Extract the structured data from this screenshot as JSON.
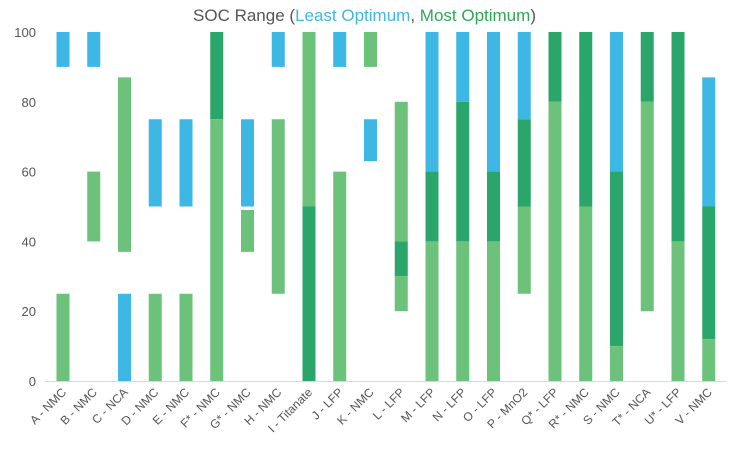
{
  "chart_data": {
    "type": "bar",
    "subtype": "floating-range",
    "title": {
      "main": "SOC Range (",
      "least": "Least Optimum",
      "sep": ",  ",
      "most": "Most Optimum",
      "close": ")"
    },
    "ylim": [
      0,
      100
    ],
    "yticks": [
      0,
      20,
      40,
      60,
      80,
      100
    ],
    "colors": {
      "least": "#3db7e4",
      "mid": "#6cc17b",
      "most": "#2aa66a"
    },
    "categories": [
      "A - NMC",
      "B - NMC",
      "C - NCA",
      "D - NMC",
      "E - NMC",
      "F* - NMC",
      "G* - NMC",
      "H - NMC",
      "I - Titanate",
      "J - LFP",
      "K - NMC",
      "L - LFP",
      "M - LFP",
      "N - LFP",
      "O - LFP",
      "P - MnO2",
      "Q* - LFP",
      "R* - NMC",
      "S - NMC",
      "T* - NCA",
      "U* - LFP",
      "V - NMC"
    ],
    "segments": [
      [
        [
          "least",
          90,
          100
        ],
        [
          "mid",
          0,
          25
        ]
      ],
      [
        [
          "least",
          90,
          100
        ],
        [
          "mid",
          40,
          60
        ]
      ],
      [
        [
          "mid",
          37,
          87
        ],
        [
          "least",
          0,
          25
        ]
      ],
      [
        [
          "least",
          50,
          75
        ],
        [
          "mid",
          0,
          25
        ]
      ],
      [
        [
          "least",
          50,
          75
        ],
        [
          "mid",
          0,
          25
        ]
      ],
      [
        [
          "most",
          75,
          100
        ],
        [
          "mid",
          0,
          75
        ]
      ],
      [
        [
          "least",
          50,
          75
        ],
        [
          "mid",
          37,
          49
        ]
      ],
      [
        [
          "least",
          90,
          100
        ],
        [
          "mid",
          25,
          75
        ]
      ],
      [
        [
          "mid",
          50,
          100
        ],
        [
          "most",
          0,
          50
        ]
      ],
      [
        [
          "least",
          90,
          100
        ],
        [
          "mid",
          0,
          60
        ]
      ],
      [
        [
          "mid",
          90,
          100
        ],
        [
          "least",
          63,
          75
        ]
      ],
      [
        [
          "mid",
          40,
          80
        ],
        [
          "most",
          30,
          40
        ],
        [
          "mid",
          20,
          30
        ]
      ],
      [
        [
          "least",
          60,
          100
        ],
        [
          "most",
          40,
          60
        ],
        [
          "mid",
          0,
          40
        ]
      ],
      [
        [
          "least",
          80,
          100
        ],
        [
          "most",
          40,
          80
        ],
        [
          "mid",
          0,
          40
        ]
      ],
      [
        [
          "least",
          60,
          100
        ],
        [
          "most",
          40,
          60
        ],
        [
          "mid",
          0,
          40
        ]
      ],
      [
        [
          "least",
          75,
          100
        ],
        [
          "most",
          50,
          75
        ],
        [
          "mid",
          25,
          50
        ]
      ],
      [
        [
          "most",
          80,
          100
        ],
        [
          "mid",
          0,
          80
        ]
      ],
      [
        [
          "most",
          50,
          100
        ],
        [
          "mid",
          0,
          50
        ]
      ],
      [
        [
          "least",
          60,
          100
        ],
        [
          "most",
          10,
          60
        ],
        [
          "mid",
          0,
          10
        ]
      ],
      [
        [
          "most",
          80,
          100
        ],
        [
          "mid",
          20,
          80
        ]
      ],
      [
        [
          "most",
          40,
          100
        ],
        [
          "mid",
          0,
          40
        ]
      ],
      [
        [
          "least",
          50,
          87
        ],
        [
          "most",
          12,
          50
        ],
        [
          "mid",
          0,
          12
        ]
      ]
    ]
  }
}
